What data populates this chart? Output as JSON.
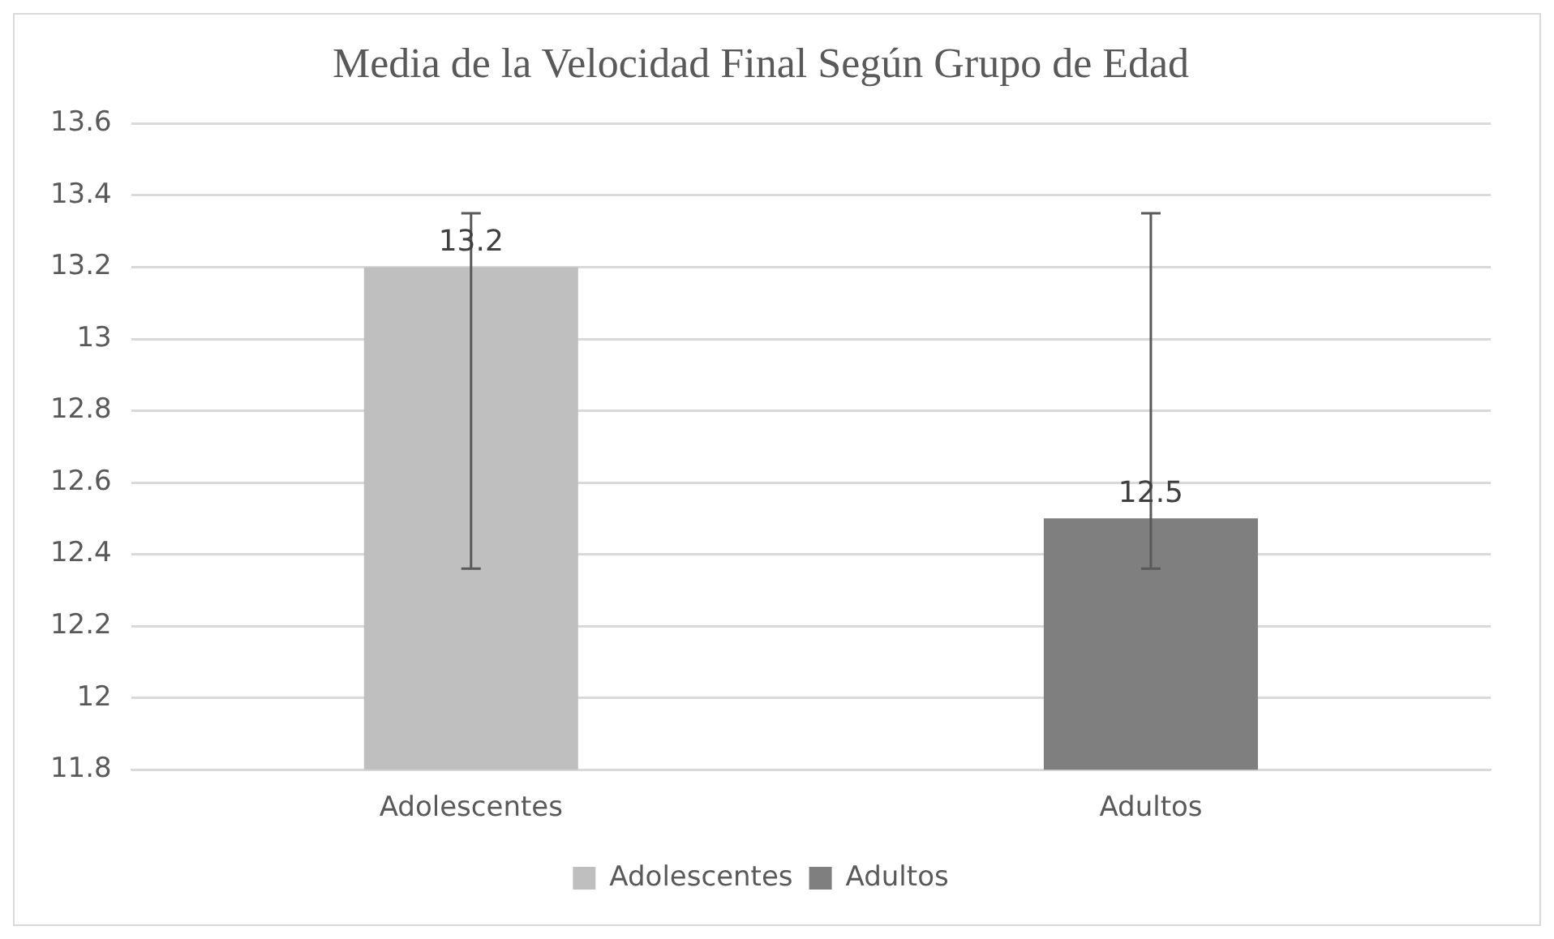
{
  "chart_data": {
    "type": "bar",
    "title": "Media de la Velocidad Final Según Grupo de Edad",
    "categories": [
      "Adolescentes",
      "Adultos"
    ],
    "series": [
      {
        "name": "Adolescentes",
        "color": "#bfbfbf",
        "values": [
          13.2,
          null
        ],
        "errors": [
          [
            12.36,
            13.35
          ],
          null
        ]
      },
      {
        "name": "Adultos",
        "color": "#7f7f7f",
        "values": [
          null,
          12.5
        ],
        "errors": [
          null,
          [
            12.36,
            13.35
          ]
        ]
      }
    ],
    "ylim": [
      11.8,
      13.6
    ],
    "yticks": [
      11.8,
      12,
      12.2,
      12.4,
      12.6,
      12.8,
      13,
      13.2,
      13.4,
      13.6
    ],
    "grid": "y",
    "legend": "bottom",
    "data_labels": true
  }
}
